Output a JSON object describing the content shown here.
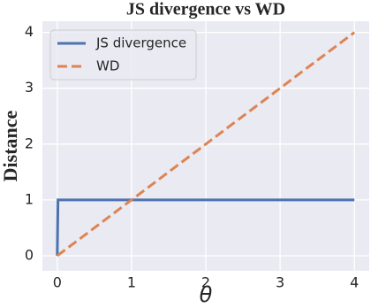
{
  "chart_data": {
    "type": "line",
    "title": "JS divergence vs WD",
    "xlabel": "θ",
    "ylabel": "Distance",
    "xlim": [
      -0.2,
      4.2
    ],
    "ylim": [
      -0.27,
      4.2
    ],
    "xticks": [
      0,
      1,
      2,
      3,
      4
    ],
    "yticks": [
      0,
      1,
      2,
      3,
      4
    ],
    "grid": true,
    "legend": "upper left",
    "series": [
      {
        "name": "JS divergence",
        "color": "#4c72b0",
        "dash": "solid",
        "x": [
          0,
          0.01,
          4
        ],
        "values": [
          0,
          1,
          1
        ]
      },
      {
        "name": "WD",
        "color": "#dd8452",
        "dash": "dashed",
        "x": [
          0,
          4
        ],
        "values": [
          0,
          4
        ]
      }
    ]
  }
}
